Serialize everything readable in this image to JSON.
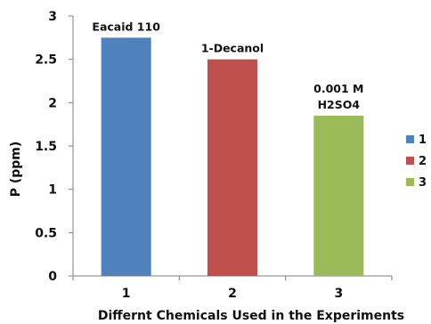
{
  "chart_data": {
    "type": "bar",
    "categories": [
      "1",
      "2",
      "3"
    ],
    "values": [
      2.75,
      2.5,
      1.85
    ],
    "bar_labels": [
      [
        "Eacaid 110"
      ],
      [
        "1-Decanol"
      ],
      [
        "0.001 M",
        "H2SO4"
      ]
    ],
    "colors": [
      "#4f81bd",
      "#c0504d",
      "#9bbb59"
    ],
    "xlabel": "Differnt Chemicals Used  in the Experiments",
    "ylabel": "P (ppm)",
    "ylim": [
      0,
      3
    ],
    "yticks": [
      "0",
      "0.5",
      "1",
      "1.5",
      "2",
      "2.5",
      "3"
    ],
    "grid": false,
    "legend": {
      "position": "right",
      "entries": [
        "1",
        "2",
        "3"
      ]
    }
  }
}
